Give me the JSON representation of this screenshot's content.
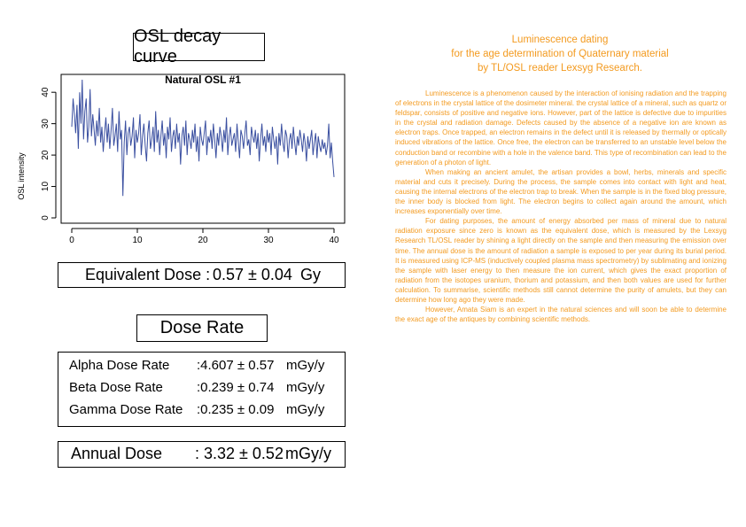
{
  "left_panel": {
    "osl_title": "OSL decay curve",
    "equivalent_dose": {
      "label": "Equivalent Dose :",
      "value": "0.57 ± 0.04",
      "unit": "Gy"
    },
    "dose_rate_title": "Dose Rate",
    "dose_rates": [
      {
        "label": "Alpha Dose Rate",
        "value": ":4.607 ± 0.57",
        "unit": "mGy/y"
      },
      {
        "label": "Beta Dose Rate",
        "value": ":0.239 ± 0.74",
        "unit": "mGy/y"
      },
      {
        "label": "Gamma Dose Rate",
        "value": ":0.235 ± 0.09",
        "unit": "mGy/y"
      }
    ],
    "annual_dose": {
      "label": "Annual Dose",
      "value": ": 3.32 ± 0.52",
      "unit": "mGy/y"
    }
  },
  "chart_data": {
    "type": "line",
    "title": "Natural OSL #1",
    "xlabel": "",
    "ylabel": "OSL intensity",
    "xlim": [
      0,
      40
    ],
    "ylim": [
      0,
      44
    ],
    "xticks": [
      "0",
      "10",
      "20",
      "30",
      "40"
    ],
    "yticks": [
      "0",
      "10",
      "20",
      "30",
      "40"
    ],
    "grid": false,
    "color": "#3a4fa0",
    "x": [
      0.0,
      0.2,
      0.4,
      0.6,
      0.8,
      1.0,
      1.2,
      1.4,
      1.6,
      1.8,
      2.0,
      2.2,
      2.4,
      2.6,
      2.8,
      3.0,
      3.2,
      3.4,
      3.6,
      3.8,
      4.0,
      4.2,
      4.4,
      4.6,
      4.8,
      5.0,
      5.2,
      5.4,
      5.6,
      5.8,
      6.0,
      6.2,
      6.4,
      6.6,
      6.8,
      7.0,
      7.2,
      7.4,
      7.6,
      7.8,
      8.0,
      8.2,
      8.4,
      8.6,
      8.8,
      9.0,
      9.2,
      9.4,
      9.6,
      9.8,
      10.0,
      10.2,
      10.4,
      10.6,
      10.8,
      11.0,
      11.2,
      11.4,
      11.6,
      11.8,
      12.0,
      12.2,
      12.4,
      12.6,
      12.8,
      13.0,
      13.2,
      13.4,
      13.6,
      13.8,
      14.0,
      14.2,
      14.4,
      14.6,
      14.8,
      15.0,
      15.2,
      15.4,
      15.6,
      15.8,
      16.0,
      16.2,
      16.4,
      16.6,
      16.8,
      17.0,
      17.2,
      17.4,
      17.6,
      17.8,
      18.0,
      18.2,
      18.4,
      18.6,
      18.8,
      19.0,
      19.2,
      19.4,
      19.6,
      19.8,
      20.0,
      20.2,
      20.4,
      20.6,
      20.8,
      21.0,
      21.2,
      21.4,
      21.6,
      21.8,
      22.0,
      22.2,
      22.4,
      22.6,
      22.8,
      23.0,
      23.2,
      23.4,
      23.6,
      23.8,
      24.0,
      24.2,
      24.4,
      24.6,
      24.8,
      25.0,
      25.2,
      25.4,
      25.6,
      25.8,
      26.0,
      26.2,
      26.4,
      26.6,
      26.8,
      27.0,
      27.2,
      27.4,
      27.6,
      27.8,
      28.0,
      28.2,
      28.4,
      28.6,
      28.8,
      29.0,
      29.2,
      29.4,
      29.6,
      29.8,
      30.0,
      30.2,
      30.4,
      30.6,
      30.8,
      31.0,
      31.2,
      31.4,
      31.6,
      31.8,
      32.0,
      32.2,
      32.4,
      32.6,
      32.8,
      33.0,
      33.2,
      33.4,
      33.6,
      33.8,
      34.0,
      34.2,
      34.4,
      34.6,
      34.8,
      35.0,
      35.2,
      35.4,
      35.6,
      35.8,
      36.0,
      36.2,
      36.4,
      36.6,
      36.8,
      37.0,
      37.2,
      37.4,
      37.6,
      37.8,
      38.0,
      38.2,
      38.4,
      38.6,
      38.8,
      39.0,
      39.2,
      39.4,
      39.6,
      39.8,
      40.0
    ],
    "y": [
      29,
      38,
      33,
      27,
      36,
      22,
      40,
      30,
      44,
      25,
      34,
      38,
      24,
      29,
      41,
      26,
      33,
      28,
      23,
      31,
      26,
      35,
      24,
      29,
      21,
      27,
      32,
      24,
      30,
      22,
      28,
      35,
      23,
      26,
      30,
      21,
      34,
      25,
      28,
      7,
      24,
      31,
      20,
      27,
      29,
      23,
      26,
      32,
      19,
      28,
      24,
      27,
      33,
      20,
      26,
      30,
      23,
      18,
      27,
      31,
      22,
      25,
      29,
      21,
      34,
      24,
      28,
      20,
      26,
      31,
      23,
      27,
      19,
      29,
      25,
      32,
      21,
      26,
      28,
      22,
      30,
      24,
      27,
      17,
      26,
      29,
      23,
      31,
      20,
      27,
      25,
      22,
      28,
      24,
      30,
      21,
      26,
      18,
      29,
      25,
      23,
      27,
      31,
      20,
      26,
      24,
      28,
      22,
      30,
      25,
      19,
      27,
      23,
      29,
      26,
      21,
      28,
      24,
      32,
      20,
      26,
      29,
      23,
      25,
      27,
      21,
      30,
      24,
      19,
      28,
      26,
      22,
      27,
      31,
      23,
      25,
      20,
      29,
      26,
      24,
      28,
      22,
      27,
      18,
      25,
      30,
      23,
      26,
      21,
      28,
      24,
      27,
      20,
      29,
      25,
      22,
      26,
      17,
      27,
      23,
      30,
      24,
      21,
      28,
      26,
      19,
      25,
      27,
      22,
      29,
      24,
      20,
      26,
      23,
      28,
      25,
      21,
      27,
      24,
      18,
      26,
      22,
      25,
      28,
      20,
      24,
      27,
      19,
      26,
      23,
      21,
      25,
      22,
      24,
      20,
      23,
      30,
      19,
      24,
      18,
      13
    ]
  },
  "article": {
    "title_lines": [
      "Luminescence dating",
      "for the age determination of Quaternary material",
      "by TL/OSL reader Lexsyg Research."
    ],
    "paragraphs": [
      "Luminescence is a phenomenon caused by the interaction of ionising radiation and the trapping of electrons in the crystal lattice of the dosimeter mineral. the crystal lattice of a mineral, such as quartz or feldspar, consists of positive and negative ions. However, part of the lattice is defective due to impurities in the crystal and radiation damage. Defects caused by the absence of a negative ion are known as electron traps. Once trapped, an electron remains in the defect until it is released by thermally or optically induced vibrations of the lattice. Once free, the electron can be transferred to an unstable level below the conduction band or recombine with a hole in the valence band. This type of recombination can lead to the generation of a photon of light.",
      "When making an ancient amulet, the artisan provides a bowl, herbs, minerals and specific material and cuts it precisely. During the process, the sample comes into contact with light and heat, causing the internal electrons of the electron trap to break. When the sample is in the fixed blog pressure, the inner body is blocked from light. The electron begins to collect again around the amount, which increases exponentially over time.",
      "For dating purposes, the amount of energy absorbed per mass of mineral due to natural radiation exposure since zero is known as the equivalent dose, which is measured by the Lexsyg Research TL/OSL reader by shining a light directly on the sample and then measuring the emission over time. The annual dose is the amount of radiation a sample is exposed to per year during its burial period. It is measured using ICP-MS (inductively coupled plasma mass spectrometry) by sublimating and ionizing the sample with laser energy to then measure the ion current, which gives the exact proportion of radiation from the isotopes uranium, thorium and potassium, and then both values are used for further calculation. To summarise, scientific methods still cannot determine the purity of amulets, but they can determine how long ago they were made.",
      "However, Amata Siam is an expert in the natural sciences and will soon be able to determine the exact age of the antiques by combining scientific methods."
    ]
  }
}
